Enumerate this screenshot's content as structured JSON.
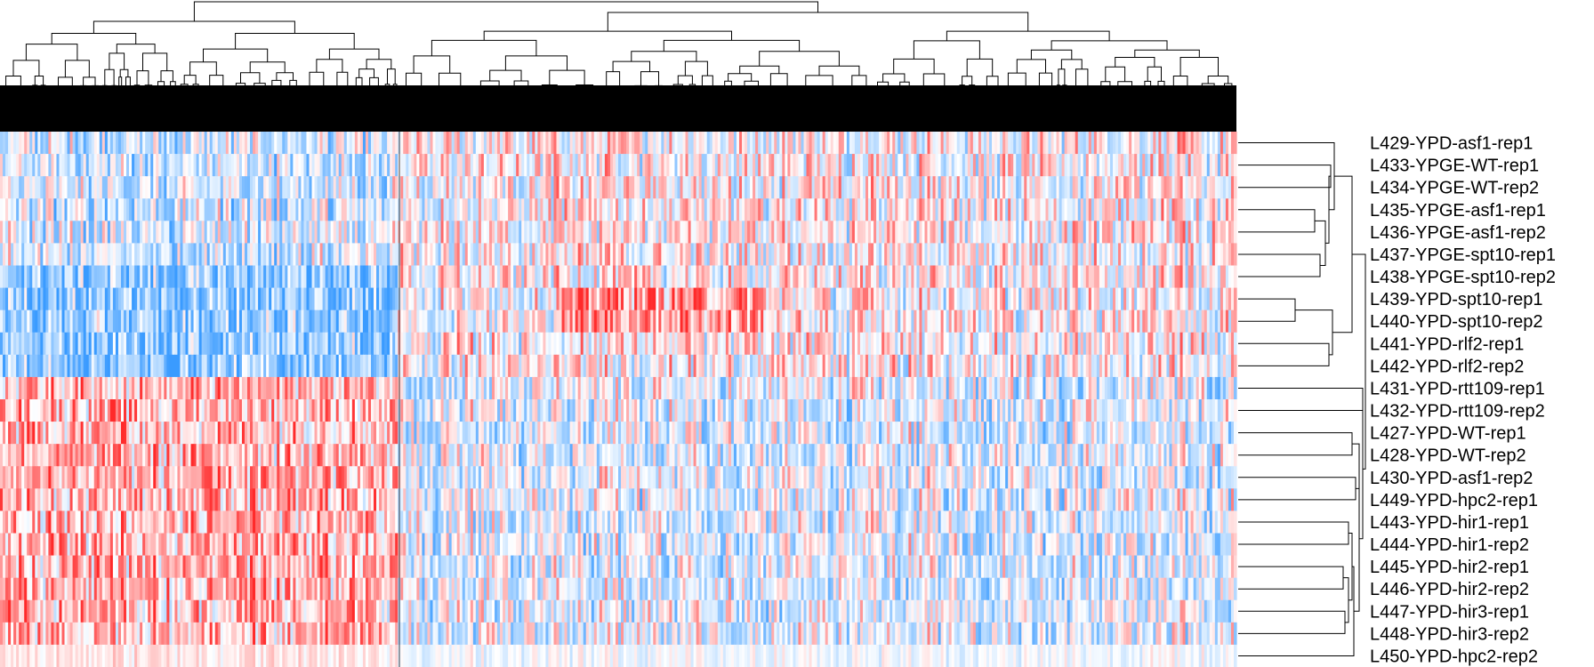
{
  "chart_data": {
    "type": "heatmap",
    "title": "",
    "xlabel": "",
    "ylabel": "",
    "rows": [
      "L429-YPD-asf1-rep1",
      "L433-YPGE-WT-rep1",
      "L434-YPGE-WT-rep2",
      "L435-YPGE-asf1-rep1",
      "L436-YPGE-asf1-rep2",
      "L437-YPGE-spt10-rep1",
      "L438-YPGE-spt10-rep2",
      "L439-YPD-spt10-rep1",
      "L440-YPD-spt10-rep2",
      "L441-YPD-rlf2-rep1",
      "L442-YPD-rlf2-rep2",
      "L431-YPD-rtt109-rep1",
      "L432-YPD-rtt109-rep2",
      "L427-YPD-WT-rep1",
      "L428-YPD-WT-rep2",
      "L430-YPD-asf1-rep2",
      "L449-YPD-hpc2-rep1",
      "L443-YPD-hir1-rep1",
      "L444-YPD-hir1-rep2",
      "L445-YPD-hir2-rep1",
      "L446-YPD-hir2-rep2",
      "L447-YPD-hir3-rep1",
      "L448-YPD-hir3-rep2",
      "L450-YPD-hpc2-rep2"
    ],
    "column_dendrogram": true,
    "row_dendrogram": true,
    "row_dendrogram_side": "right",
    "column_dendrogram_side": "top",
    "color_scale": {
      "low": "#3a9bff",
      "mid": "#ffffff",
      "high": "#ff2a2a"
    },
    "row_clusters": {
      "top_group": [
        "L429-YPD-asf1-rep1",
        "L433-YPGE-WT-rep1",
        "L434-YPGE-WT-rep2",
        "L435-YPGE-asf1-rep1",
        "L436-YPGE-asf1-rep2",
        "L437-YPGE-spt10-rep1",
        "L438-YPGE-spt10-rep2",
        "L439-YPD-spt10-rep1",
        "L440-YPD-spt10-rep2",
        "L441-YPD-rlf2-rep1",
        "L442-YPD-rlf2-rep2"
      ],
      "bottom_group": [
        "L431-YPD-rtt109-rep1",
        "L432-YPD-rtt109-rep2",
        "L427-YPD-WT-rep1",
        "L428-YPD-WT-rep2",
        "L430-YPD-asf1-rep2",
        "L449-YPD-hpc2-rep1",
        "L443-YPD-hir1-rep1",
        "L444-YPD-hir1-rep2",
        "L445-YPD-hir2-rep1",
        "L446-YPD-hir2-rep2",
        "L447-YPD-hir3-rep1",
        "L448-YPD-hir3-rep2",
        "L450-YPD-hpc2-rep2"
      ]
    }
  }
}
